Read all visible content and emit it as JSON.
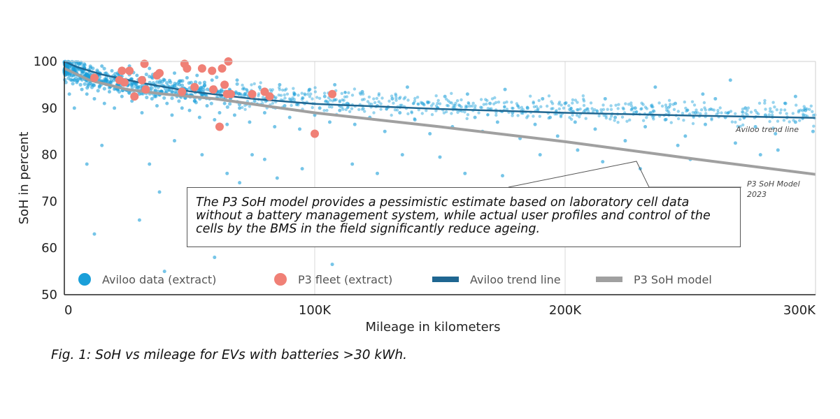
{
  "chart_data": {
    "type": "scatter",
    "xlabel": "Mileage in kilometers",
    "ylabel": "SoH in percent",
    "xlim": [
      0,
      300000
    ],
    "ylim": [
      50,
      100
    ],
    "x_ticks": [
      0,
      100000,
      200000,
      300000
    ],
    "x_tick_labels": [
      "0",
      "100K",
      "200K",
      "300K"
    ],
    "y_ticks": [
      50,
      60,
      70,
      80,
      90,
      100
    ],
    "y_tick_labels": [
      "50",
      "60",
      "70",
      "80",
      "90",
      "100"
    ],
    "grid": "vertical",
    "legend_position": "bottom-inside",
    "series": [
      {
        "name": "Aviloo data (extract)",
        "kind": "scatter",
        "color": "#1a9fd9",
        "points": [
          [
            1500,
            97.5
          ],
          [
            3000,
            96
          ],
          [
            4000,
            98
          ],
          [
            5000,
            95.5
          ],
          [
            6000,
            97
          ],
          [
            7000,
            94
          ],
          [
            8000,
            96.5
          ],
          [
            9000,
            93
          ],
          [
            10000,
            98
          ],
          [
            11000,
            95
          ],
          [
            12000,
            92
          ],
          [
            13000,
            97
          ],
          [
            14000,
            94.5
          ],
          [
            15000,
            99
          ],
          [
            16000,
            91
          ],
          [
            17000,
            96
          ],
          [
            18000,
            93.5
          ],
          [
            19000,
            98
          ],
          [
            20000,
            90
          ],
          [
            21000,
            95
          ],
          [
            22000,
            97.5
          ],
          [
            23000,
            92.5
          ],
          [
            24000,
            96
          ],
          [
            25000,
            94
          ],
          [
            26000,
            99
          ],
          [
            27000,
            91.5
          ],
          [
            28000,
            95.5
          ],
          [
            29000,
            97
          ],
          [
            30000,
            93
          ],
          [
            31000,
            89
          ],
          [
            32000,
            96
          ],
          [
            33000,
            94
          ],
          [
            34000,
            98.5
          ],
          [
            35000,
            92
          ],
          [
            36000,
            95
          ],
          [
            37000,
            90.5
          ],
          [
            38000,
            97
          ],
          [
            39000,
            93.5
          ],
          [
            40000,
            96
          ],
          [
            41000,
            91
          ],
          [
            42000,
            94.5
          ],
          [
            43000,
            88.5
          ],
          [
            44000,
            97.5
          ],
          [
            45000,
            92.5
          ],
          [
            46000,
            95
          ],
          [
            47000,
            90
          ],
          [
            48000,
            93
          ],
          [
            49000,
            96.5
          ],
          [
            50000,
            89.5
          ],
          [
            51000,
            94
          ],
          [
            52000,
            91.5
          ],
          [
            53000,
            97
          ],
          [
            54000,
            88
          ],
          [
            55000,
            93
          ],
          [
            56000,
            95.5
          ],
          [
            57000,
            90.5
          ],
          [
            58000,
            92
          ],
          [
            59000,
            96
          ],
          [
            60000,
            87.5
          ],
          [
            61000,
            93.5
          ],
          [
            62000,
            89
          ],
          [
            63000,
            95
          ],
          [
            64000,
            91
          ],
          [
            65000,
            86.5
          ],
          [
            66000,
            94
          ],
          [
            67000,
            92.5
          ],
          [
            68000,
            88.5
          ],
          [
            69000,
            96
          ],
          [
            70000,
            90
          ],
          [
            72000,
            93
          ],
          [
            74000,
            87
          ],
          [
            76000,
            91.5
          ],
          [
            78000,
            94.5
          ],
          [
            80000,
            89
          ],
          [
            82000,
            92
          ],
          [
            84000,
            86
          ],
          [
            86000,
            95
          ],
          [
            88000,
            90.5
          ],
          [
            90000,
            88
          ],
          [
            92000,
            93
          ],
          [
            94000,
            85.5
          ],
          [
            96000,
            91
          ],
          [
            98000,
            94
          ],
          [
            100000,
            88.5
          ],
          [
            102000,
            90
          ],
          [
            104000,
            92.5
          ],
          [
            106000,
            87
          ],
          [
            108000,
            95
          ],
          [
            110000,
            89.5
          ],
          [
            113000,
            91
          ],
          [
            116000,
            86.5
          ],
          [
            119000,
            93.5
          ],
          [
            122000,
            88
          ],
          [
            125000,
            90.5
          ],
          [
            128000,
            85
          ],
          [
            131000,
            92
          ],
          [
            134000,
            89
          ],
          [
            137000,
            94.5
          ],
          [
            140000,
            87.5
          ],
          [
            143000,
            91
          ],
          [
            146000,
            84.5
          ],
          [
            149000,
            90
          ],
          [
            152000,
            92.5
          ],
          [
            155000,
            86
          ],
          [
            158000,
            89.5
          ],
          [
            161000,
            93
          ],
          [
            164000,
            88
          ],
          [
            167000,
            85
          ],
          [
            170000,
            91
          ],
          [
            173000,
            87
          ],
          [
            176000,
            94
          ],
          [
            179000,
            89
          ],
          [
            182000,
            83.5
          ],
          [
            185000,
            90
          ],
          [
            188000,
            86.5
          ],
          [
            191000,
            92
          ],
          [
            194000,
            88
          ],
          [
            197000,
            84
          ],
          [
            200000,
            91
          ],
          [
            204000,
            87
          ],
          [
            208000,
            89.5
          ],
          [
            212000,
            85.5
          ],
          [
            216000,
            92
          ],
          [
            220000,
            88
          ],
          [
            224000,
            83
          ],
          [
            228000,
            90
          ],
          [
            232000,
            86
          ],
          [
            236000,
            94.5
          ],
          [
            240000,
            87.5
          ],
          [
            244000,
            91
          ],
          [
            248000,
            84
          ],
          [
            252000,
            89
          ],
          [
            256000,
            86.5
          ],
          [
            260000,
            92
          ],
          [
            264000,
            88
          ],
          [
            268000,
            82.5
          ],
          [
            272000,
            90
          ],
          [
            276000,
            86
          ],
          [
            280000,
            88.5
          ],
          [
            284000,
            84.5
          ],
          [
            288000,
            91
          ],
          [
            292000,
            87
          ],
          [
            296000,
            89.5
          ],
          [
            299000,
            85
          ],
          [
            266000,
            96
          ],
          [
            255000,
            93
          ],
          [
            245000,
            82
          ],
          [
            278000,
            80
          ],
          [
            285000,
            81
          ],
          [
            292000,
            92.5
          ],
          [
            9000,
            78
          ],
          [
            12000,
            63
          ],
          [
            15000,
            82
          ],
          [
            30000,
            66
          ],
          [
            34000,
            78
          ],
          [
            38000,
            72
          ],
          [
            40000,
            55
          ],
          [
            44000,
            83
          ],
          [
            55000,
            80
          ],
          [
            60000,
            58
          ],
          [
            65000,
            76
          ],
          [
            70000,
            74
          ],
          [
            75000,
            80
          ],
          [
            80000,
            79
          ],
          [
            85000,
            75
          ],
          [
            95000,
            77
          ],
          [
            107000,
            56.5
          ],
          [
            115000,
            78
          ],
          [
            125000,
            76
          ],
          [
            135000,
            80
          ],
          [
            150000,
            79.5
          ],
          [
            160000,
            76
          ],
          [
            175000,
            75.5
          ],
          [
            190000,
            80
          ],
          [
            205000,
            81
          ],
          [
            215000,
            78.5
          ],
          [
            230000,
            77
          ],
          [
            250000,
            79
          ],
          [
            4000,
            90
          ],
          [
            2000,
            93
          ]
        ]
      },
      {
        "name": "P3 fleet (extract)",
        "kind": "scatter",
        "color": "#f08076",
        "points": [
          [
            12000,
            96.5
          ],
          [
            22000,
            96
          ],
          [
            23000,
            98
          ],
          [
            24000,
            95.5
          ],
          [
            26000,
            98
          ],
          [
            28000,
            92.5
          ],
          [
            31000,
            96
          ],
          [
            32000,
            99.5
          ],
          [
            32500,
            94
          ],
          [
            37000,
            97
          ],
          [
            38000,
            97.5
          ],
          [
            47000,
            93.5
          ],
          [
            48000,
            99.5
          ],
          [
            49000,
            98.5
          ],
          [
            52000,
            94.5
          ],
          [
            55000,
            98.5
          ],
          [
            59000,
            98
          ],
          [
            59500,
            94
          ],
          [
            62000,
            86
          ],
          [
            63000,
            98.5
          ],
          [
            64000,
            95
          ],
          [
            65000,
            93
          ],
          [
            65500,
            100
          ],
          [
            66500,
            93
          ],
          [
            75000,
            93
          ],
          [
            80000,
            93.5
          ],
          [
            82000,
            92.5
          ],
          [
            100000,
            84.5
          ],
          [
            107000,
            93
          ]
        ]
      },
      {
        "name": "Aviloo trend line",
        "kind": "line",
        "color": "#1f6691",
        "points": [
          [
            0,
            100
          ],
          [
            5000,
            98.8
          ],
          [
            15000,
            97.2
          ],
          [
            30000,
            95.5
          ],
          [
            50000,
            93.6
          ],
          [
            75000,
            92
          ],
          [
            100000,
            90.9
          ],
          [
            150000,
            89.8
          ],
          [
            200000,
            89
          ],
          [
            250000,
            88.4
          ],
          [
            300000,
            87.9
          ]
        ]
      },
      {
        "name": "P3 SoH model",
        "kind": "line",
        "color": "#a0a0a0",
        "points": [
          [
            0,
            98.5
          ],
          [
            10000,
            96
          ],
          [
            25000,
            94
          ],
          [
            40000,
            93
          ],
          [
            60000,
            92
          ],
          [
            80000,
            90.5
          ],
          [
            100000,
            89
          ],
          [
            150000,
            86
          ],
          [
            200000,
            82.8
          ],
          [
            250000,
            79.2
          ],
          [
            300000,
            75.8
          ]
        ]
      }
    ],
    "annotations": [
      {
        "text_lines": [
          "Aviloo trend line"
        ]
      },
      {
        "text_lines": [
          "P3 SoH Model",
          "2023"
        ]
      }
    ]
  },
  "callout": {
    "text": "The P3 SoH model provides a pessimistic estimate based on laboratory cell data without a battery management system, while actual user profiles and control of the cells by the BMS in the field significantly reduce ageing."
  },
  "caption": "Fig. 1: SoH vs mileage for EVs with batteries >30 kWh."
}
